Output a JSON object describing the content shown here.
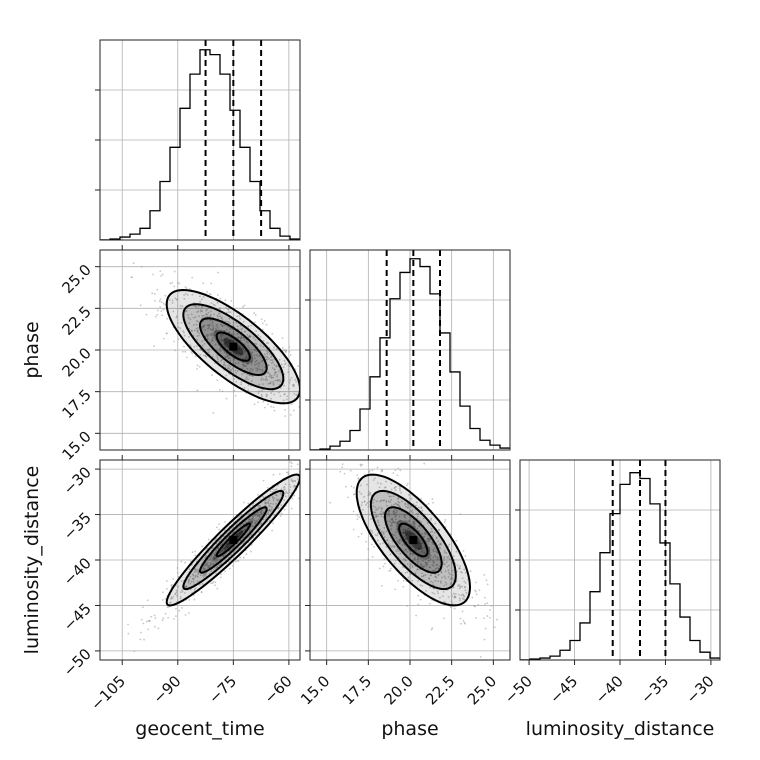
{
  "chart_data": {
    "type": "corner",
    "parameters": [
      {
        "name": "geocent_time",
        "range": [
          -111,
          -57
        ],
        "ticks": [
          -105,
          -90,
          -75,
          -60
        ],
        "quantiles": [
          -82.5,
          -75,
          -67.5
        ]
      },
      {
        "name": "phase",
        "range": [
          14,
          26
        ],
        "ticks": [
          15.0,
          17.5,
          20.0,
          22.5,
          25.0
        ],
        "quantiles": [
          18.6,
          20.2,
          21.8
        ]
      },
      {
        "name": "luminosity_distance",
        "range": [
          -51,
          -29
        ],
        "ticks": [
          -50,
          -45,
          -40,
          -35,
          -30
        ],
        "quantiles": [
          -40.8,
          -37.8,
          -35.0
        ]
      }
    ],
    "tick_labels": {
      "geocent_time": [
        "−105",
        "−90",
        "−75",
        "−60"
      ],
      "phase": [
        "15.0",
        "17.5",
        "20.0",
        "22.5",
        "25.0"
      ],
      "luminosity_distance": [
        "−50",
        "−45",
        "−40",
        "−35",
        "−30"
      ]
    },
    "histograms": {
      "geocent_time": {
        "edges": [
          -111,
          -108.3,
          -105.6,
          -102.9,
          -100.2,
          -97.5,
          -94.8,
          -92.1,
          -89.4,
          -86.7,
          -84,
          -81.3,
          -78.6,
          -75.9,
          -73.2,
          -70.5,
          -67.8,
          -65.1,
          -62.4,
          -59.7,
          -57
        ],
        "counts": [
          0.1,
          1,
          3,
          6,
          12,
          30,
          60,
          95,
          135,
          170,
          195,
          190,
          170,
          133,
          95,
          60,
          30,
          12,
          4,
          1
        ],
        "ymax": 205
      },
      "phase": {
        "edges": [
          14,
          14.6,
          15.2,
          15.8,
          16.4,
          17,
          17.6,
          18.2,
          18.8,
          19.4,
          20,
          20.6,
          21.2,
          21.8,
          22.4,
          23,
          23.6,
          24.2,
          24.8,
          25.4,
          26
        ],
        "counts": [
          0.1,
          1,
          4,
          9,
          20,
          42,
          75,
          115,
          155,
          182,
          196,
          188,
          160,
          120,
          80,
          45,
          22,
          10,
          5,
          2
        ],
        "ymax": 205
      },
      "luminosity_distance": {
        "edges": [
          -51,
          -49.9,
          -48.8,
          -47.7,
          -46.6,
          -45.5,
          -44.4,
          -43.3,
          -42.2,
          -41.1,
          -40,
          -38.9,
          -37.8,
          -36.7,
          -35.6,
          -34.5,
          -33.4,
          -32.3,
          -31.2,
          -30.1,
          -29
        ],
        "counts": [
          0.1,
          1,
          2,
          4,
          10,
          20,
          38,
          70,
          110,
          150,
          180,
          192,
          186,
          160,
          120,
          78,
          44,
          20,
          8,
          2
        ],
        "ymax": 205
      }
    },
    "pairs": [
      {
        "x": "geocent_time",
        "y": "phase",
        "mean": [
          -75,
          20.2
        ],
        "sd": [
          9,
          1.7
        ],
        "corr": -0.75
      },
      {
        "x": "geocent_time",
        "y": "luminosity_distance",
        "mean": [
          -75,
          -37.8
        ],
        "sd": [
          9,
          3.6
        ],
        "corr": 0.95
      },
      {
        "x": "phase",
        "y": "luminosity_distance",
        "mean": [
          20.2,
          -37.8
        ],
        "sd": [
          1.7,
          3.6
        ],
        "corr": -0.72
      }
    ],
    "contour_levels_sigma": [
      0.5,
      1.0,
      1.5,
      2.0
    ],
    "grid": true
  },
  "colors": {
    "line": "#000000",
    "grid": "#b0b0b0",
    "scatter": "#9a9a9a",
    "density": "#000000"
  }
}
